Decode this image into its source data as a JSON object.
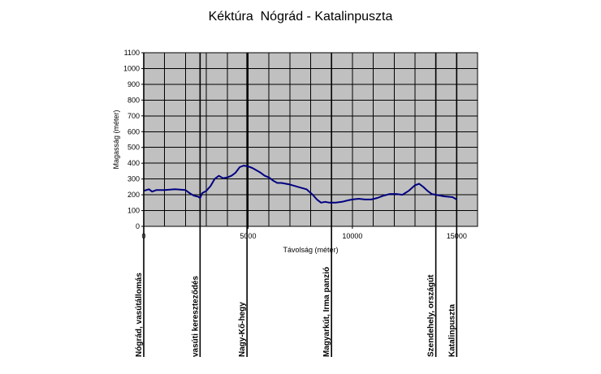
{
  "chart_data": {
    "type": "line",
    "title": "Kéktúra  Nógrád - Katalinpuszta",
    "xlabel": "Távolság (méter)",
    "ylabel": "Magasság (méter)",
    "xlim": [
      0,
      16000
    ],
    "ylim": [
      0,
      1100
    ],
    "x_ticks": [
      0,
      5000,
      10000,
      15000
    ],
    "y_ticks": [
      0,
      100,
      200,
      300,
      400,
      500,
      600,
      700,
      800,
      900,
      1000,
      1100
    ],
    "grid": true,
    "background_color": "#c0c0c0",
    "line_color": "#000080",
    "x": [
      0,
      250,
      400,
      600,
      1000,
      1500,
      2000,
      2200,
      2400,
      2600,
      2700,
      2800,
      3000,
      3200,
      3400,
      3600,
      3800,
      4000,
      4200,
      4400,
      4600,
      4800,
      5000,
      5200,
      5400,
      5600,
      5800,
      6000,
      6200,
      6400,
      6600,
      7000,
      7400,
      7800,
      8100,
      8300,
      8500,
      8700,
      8900,
      9200,
      9500,
      9800,
      10000,
      10300,
      10600,
      10900,
      11200,
      11500,
      11800,
      12100,
      12400,
      12700,
      13000,
      13200,
      13400,
      13600,
      13800,
      14000,
      14400,
      14800,
      15000
    ],
    "values": [
      225,
      235,
      220,
      230,
      230,
      235,
      230,
      210,
      195,
      188,
      180,
      210,
      225,
      255,
      300,
      320,
      305,
      310,
      320,
      340,
      375,
      385,
      380,
      370,
      355,
      340,
      320,
      310,
      290,
      275,
      275,
      265,
      250,
      235,
      200,
      170,
      150,
      155,
      150,
      150,
      155,
      165,
      170,
      175,
      170,
      170,
      180,
      195,
      205,
      205,
      200,
      225,
      260,
      270,
      250,
      225,
      205,
      200,
      190,
      185,
      170
    ],
    "stations": [
      {
        "name": "Nógrád, vasútállomás",
        "x": 0
      },
      {
        "name": "vasúti kereszteződés",
        "x": 2700
      },
      {
        "name": "Nagy-Kő-hegy",
        "x": 4950
      },
      {
        "name": "Magyarkút, Irma panzió",
        "x": 9000
      },
      {
        "name": "Szendehely, országút",
        "x": 14000
      },
      {
        "name": "Katalinpuszta",
        "x": 15000
      }
    ]
  }
}
